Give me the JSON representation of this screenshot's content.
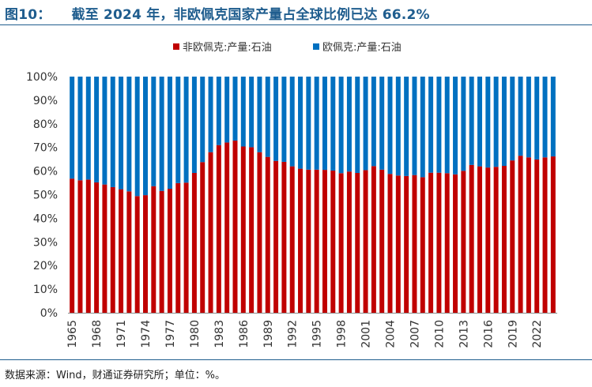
{
  "header": {
    "figure_label": "图10：",
    "title": "截至 2024 年，非欧佩克国家产量占全球比例已达 66.2%"
  },
  "footer": {
    "source": "数据来源：Wind，财通证券研究所；单位：%。"
  },
  "chart_data": {
    "type": "bar",
    "stacked": true,
    "legend_position": "top-center",
    "grid": false,
    "x": [
      1965,
      1966,
      1967,
      1968,
      1969,
      1970,
      1971,
      1972,
      1973,
      1974,
      1975,
      1976,
      1977,
      1978,
      1979,
      1980,
      1981,
      1982,
      1983,
      1984,
      1985,
      1986,
      1987,
      1988,
      1989,
      1990,
      1991,
      1992,
      1993,
      1994,
      1995,
      1996,
      1997,
      1998,
      1999,
      2000,
      2001,
      2002,
      2003,
      2004,
      2005,
      2006,
      2007,
      2008,
      2009,
      2010,
      2011,
      2012,
      2013,
      2014,
      2015,
      2016,
      2017,
      2018,
      2019,
      2020,
      2021,
      2022,
      2023,
      2024
    ],
    "x_tick_labels": [
      "1965",
      "1968",
      "1971",
      "1974",
      "1977",
      "1980",
      "1983",
      "1986",
      "1989",
      "1992",
      "1995",
      "1998",
      "2001",
      "2004",
      "2007",
      "2010",
      "2013",
      "2016",
      "2019",
      "2022"
    ],
    "y_tick_labels": [
      "0%",
      "10%",
      "20%",
      "30%",
      "40%",
      "50%",
      "60%",
      "70%",
      "80%",
      "90%",
      "100%"
    ],
    "ylim": [
      0,
      100
    ],
    "series": [
      {
        "name": "非欧佩克:产量:石油",
        "color": "#c00000",
        "values": [
          56.8,
          56.1,
          56.4,
          55.2,
          54.3,
          53.2,
          52.3,
          51.4,
          49.4,
          49.8,
          53.6,
          51.6,
          52.5,
          54.9,
          55.1,
          59.2,
          63.8,
          68.0,
          71.0,
          72.1,
          72.9,
          70.4,
          70.1,
          68.0,
          66.0,
          64.3,
          63.9,
          62.0,
          61.0,
          60.6,
          60.6,
          60.5,
          60.2,
          59.1,
          59.8,
          59.2,
          60.4,
          62.1,
          60.6,
          58.8,
          58.1,
          57.9,
          58.3,
          57.4,
          59.3,
          59.3,
          59.1,
          58.6,
          60.1,
          62.6,
          62.0,
          61.5,
          61.8,
          62.2,
          64.5,
          66.5,
          65.8,
          64.9,
          65.8,
          66.2
        ]
      },
      {
        "name": "欧佩克:产量:石油",
        "color": "#0070c0",
        "values": [
          43.2,
          43.9,
          43.6,
          44.8,
          45.7,
          46.8,
          47.7,
          48.6,
          50.6,
          50.2,
          46.4,
          48.4,
          47.5,
          45.1,
          44.9,
          40.8,
          36.2,
          32.0,
          29.0,
          27.9,
          27.1,
          29.6,
          29.9,
          32.0,
          34.0,
          35.7,
          36.1,
          38.0,
          39.0,
          39.4,
          39.4,
          39.5,
          39.8,
          40.9,
          40.2,
          40.8,
          39.6,
          37.9,
          39.4,
          41.2,
          41.9,
          42.1,
          41.7,
          42.6,
          40.7,
          40.7,
          40.9,
          41.4,
          39.9,
          37.4,
          38.0,
          38.5,
          38.2,
          37.8,
          35.5,
          33.5,
          34.2,
          35.1,
          34.2,
          33.8
        ]
      }
    ]
  }
}
